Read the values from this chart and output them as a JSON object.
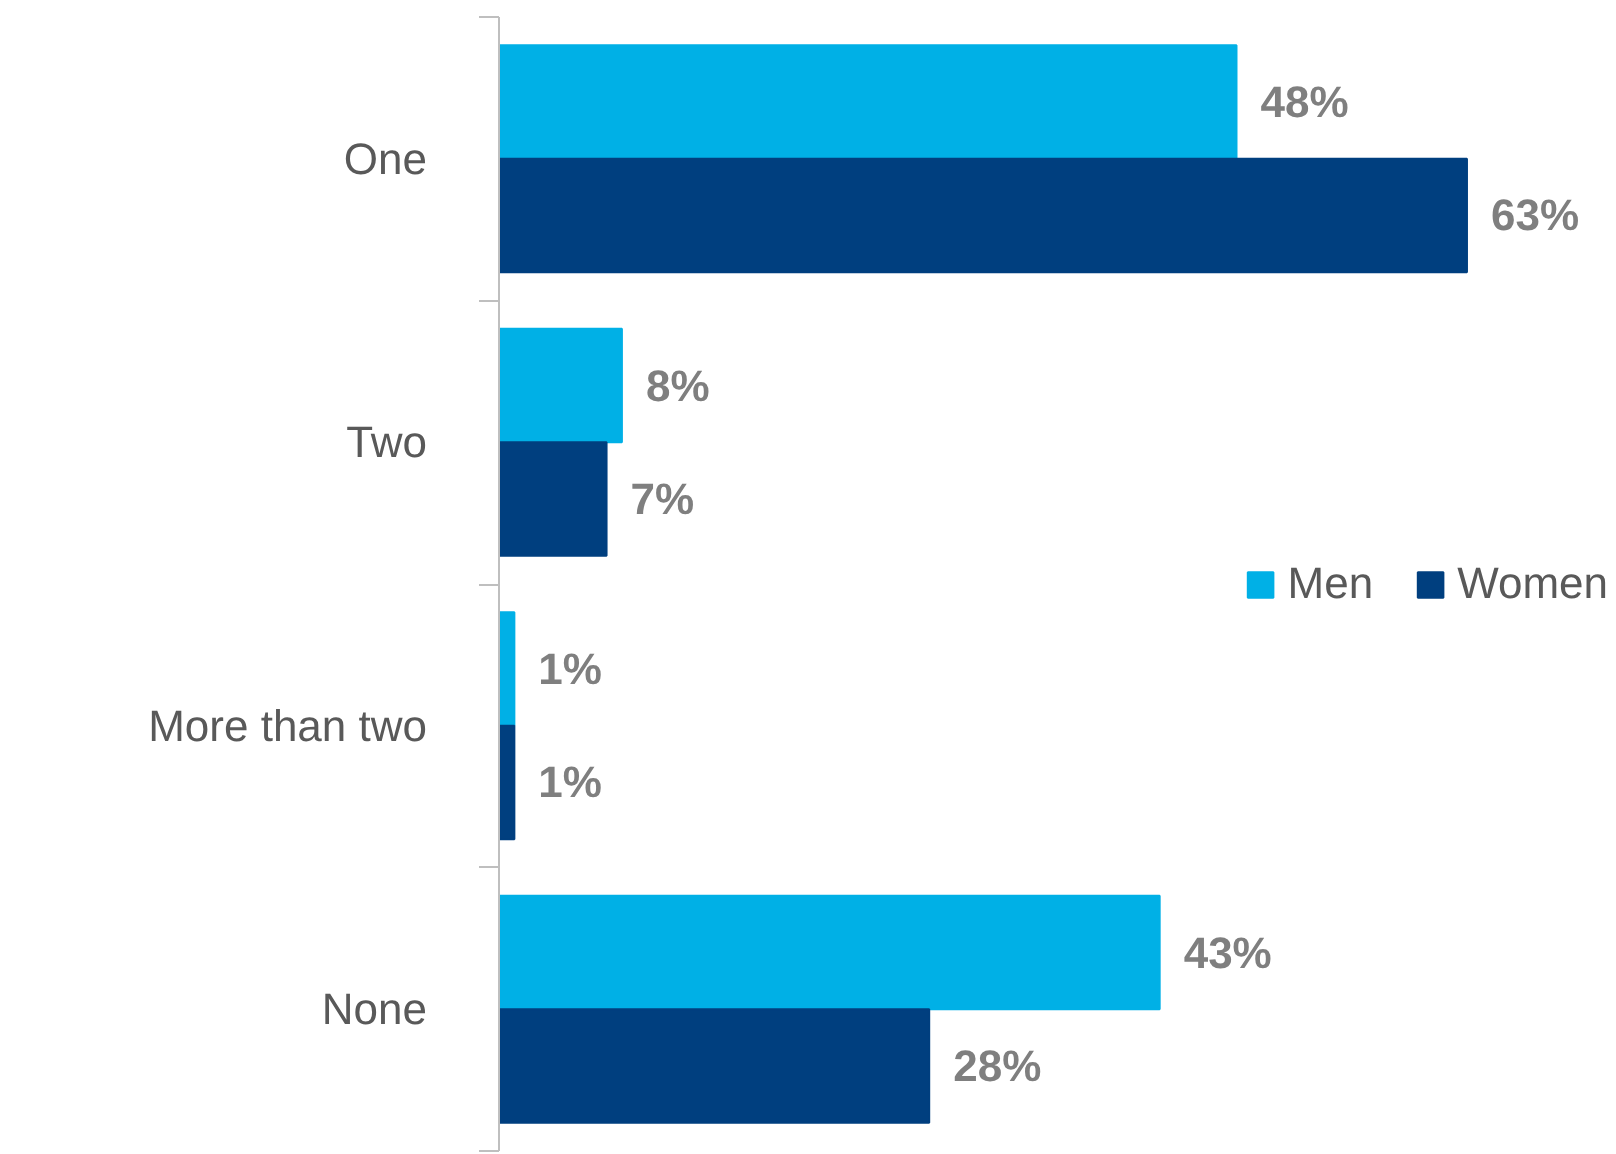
{
  "chart_data": {
    "type": "bar",
    "orientation": "horizontal",
    "categories": [
      "One",
      "Two",
      "More than two",
      "None"
    ],
    "series": [
      {
        "name": "Men",
        "color": "#00b0e6",
        "values": [
          48,
          8,
          1,
          43
        ],
        "value_labels": [
          "48%",
          "8%",
          "1%",
          "43%"
        ]
      },
      {
        "name": "Women",
        "color": "#003f7f",
        "values": [
          63,
          7,
          1,
          28
        ],
        "value_labels": [
          "63%",
          "7%",
          "1%",
          "28%"
        ]
      }
    ],
    "legend": "right",
    "grid": false,
    "tick_labels": "y"
  }
}
